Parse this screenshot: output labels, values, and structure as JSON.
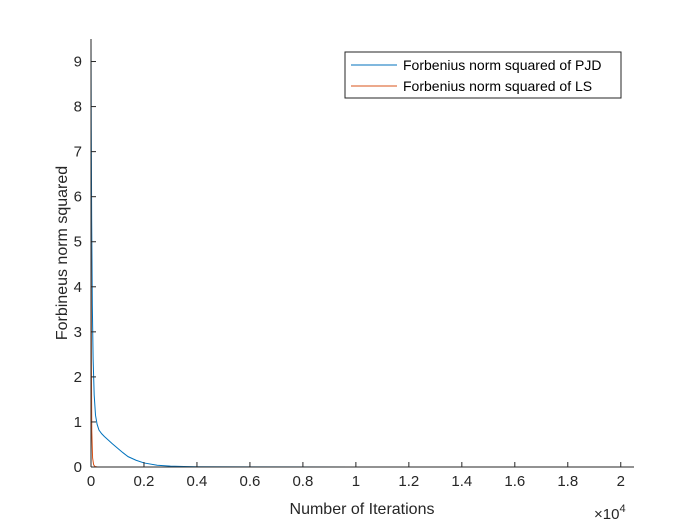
{
  "chart_data": {
    "type": "line",
    "xlabel": "Number of Iterations",
    "ylabel": "Forbineus norm squared",
    "x_exponent_label": {
      "base": "×10",
      "exp": "4"
    },
    "xlim": [
      0,
      20500
    ],
    "ylim": [
      0,
      9.5
    ],
    "xticks": [
      0,
      2000,
      4000,
      6000,
      8000,
      10000,
      12000,
      14000,
      16000,
      18000,
      20000
    ],
    "xtick_labels": [
      "0",
      "0.2",
      "0.4",
      "0.6",
      "0.8",
      "1",
      "1.2",
      "1.4",
      "1.6",
      "1.8",
      "2"
    ],
    "yticks": [
      0,
      1,
      2,
      3,
      4,
      5,
      6,
      7,
      8,
      9
    ],
    "ytick_labels": [
      "0",
      "1",
      "2",
      "3",
      "4",
      "5",
      "6",
      "7",
      "8",
      "9"
    ],
    "grid": false,
    "legend_position": "top-right",
    "series": [
      {
        "name": "Forbenius norm squared of PJD",
        "color": "#0072BD",
        "x": [
          0,
          10,
          25,
          50,
          80,
          120,
          170,
          230,
          300,
          400,
          500,
          650,
          800,
          1000,
          1200,
          1400,
          1700,
          2000,
          2500,
          3000,
          3500,
          4000,
          6000,
          10000,
          15000,
          20500
        ],
        "y": [
          9.5,
          7.5,
          5.5,
          3.6,
          2.4,
          1.6,
          1.15,
          0.95,
          0.82,
          0.74,
          0.68,
          0.6,
          0.52,
          0.42,
          0.32,
          0.23,
          0.15,
          0.09,
          0.04,
          0.02,
          0.01,
          0.005,
          0.002,
          0.001,
          0.0005,
          0.0005
        ]
      },
      {
        "name": "Forbenius norm squared of LS",
        "color": "#D95319",
        "x": [
          0,
          5,
          15,
          30,
          60,
          100,
          150,
          250
        ],
        "y": [
          7.0,
          5.0,
          2.2,
          0.8,
          0.2,
          0.05,
          0.01,
          0.0
        ]
      }
    ]
  }
}
